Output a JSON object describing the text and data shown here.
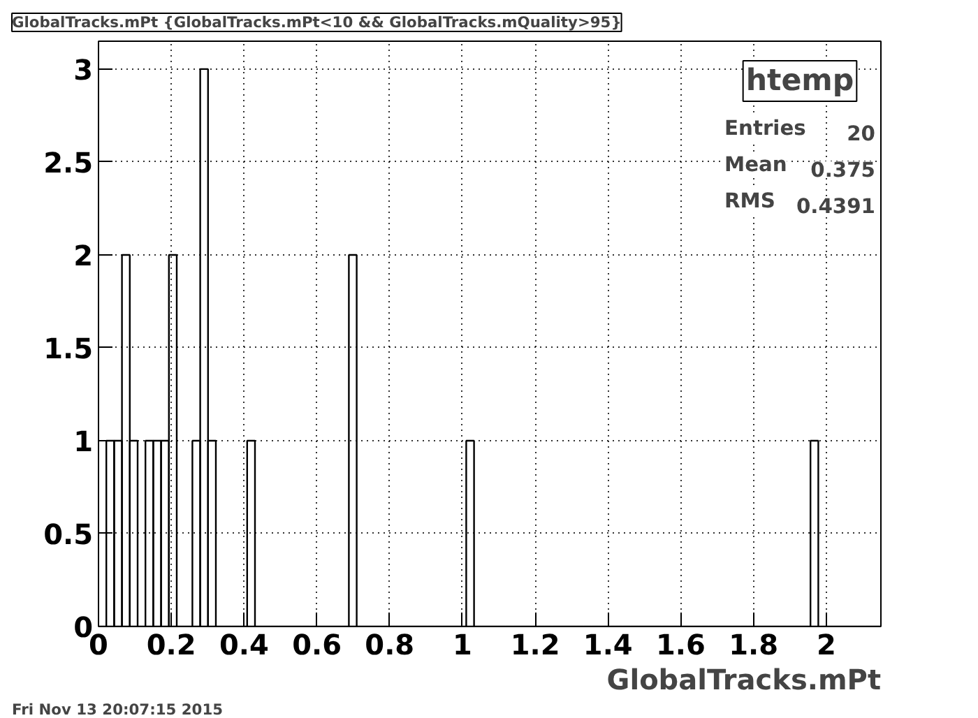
{
  "chart_data": {
    "type": "histogram",
    "title": "GlobalTracks.mPt {GlobalTracks.mPt<10 && GlobalTracks.mQuality>95}",
    "xlabel": "GlobalTracks.mPt",
    "bins": [
      0,
      0.0215,
      0.043,
      0.0645,
      0.086,
      0.1075,
      0.129,
      0.1505,
      0.172,
      0.1935,
      0.215,
      0.2365,
      0.258,
      0.2795,
      0.301,
      0.3225,
      0.344,
      0.3655,
      0.387,
      0.4085,
      0.43,
      0.4515,
      0.473,
      0.4945,
      0.516,
      0.5375,
      0.559,
      0.5805,
      0.602,
      0.6235,
      0.645,
      0.6665,
      0.688,
      0.7095,
      0.731,
      0.7525,
      0.774,
      0.7955,
      0.817,
      0.8385,
      0.86,
      0.8815,
      0.903,
      0.9245,
      0.946,
      0.9675,
      0.989,
      1.0105,
      1.032,
      1.0535,
      1.075,
      1.0965,
      1.118,
      1.1395,
      1.161,
      1.1825,
      1.204,
      1.2255,
      1.247,
      1.2685,
      1.29,
      1.3115,
      1.333,
      1.3545,
      1.376,
      1.3975,
      1.419,
      1.4405,
      1.462,
      1.4835,
      1.505,
      1.5265,
      1.548,
      1.5695,
      1.591,
      1.6125,
      1.634,
      1.6555,
      1.677,
      1.6985,
      1.72,
      1.7415,
      1.763,
      1.7845,
      1.806,
      1.8275,
      1.849,
      1.8705,
      1.892,
      1.9135,
      1.935,
      1.9565,
      1.978,
      1.9995,
      2.021,
      2.0425,
      2.064,
      2.0855,
      2.107,
      2.1285,
      2.15
    ],
    "values": [
      0,
      1,
      1,
      2,
      1,
      0,
      1,
      1,
      1,
      2,
      0,
      0,
      1,
      3,
      1,
      0,
      0,
      0,
      0,
      1,
      0,
      0,
      0,
      0,
      0,
      0,
      0,
      0,
      0,
      0,
      0,
      0,
      2,
      0,
      0,
      0,
      0,
      0,
      0,
      0,
      0,
      0,
      0,
      0,
      0,
      0,
      0,
      1,
      0,
      0,
      0,
      0,
      0,
      0,
      0,
      0,
      0,
      0,
      0,
      0,
      0,
      0,
      0,
      0,
      0,
      0,
      0,
      0,
      0,
      0,
      0,
      0,
      0,
      0,
      0,
      0,
      0,
      0,
      0,
      0,
      0,
      0,
      0,
      0,
      0,
      0,
      0,
      0,
      0,
      0,
      0,
      1,
      0,
      0,
      0,
      0,
      0,
      0,
      0,
      0
    ],
    "color": "#000000",
    "xlim": [
      0,
      2.15
    ],
    "xticks": [
      0,
      0.2,
      0.4,
      0.6,
      0.8,
      1,
      1.2,
      1.4,
      1.6,
      1.8,
      2
    ],
    "ylim": [
      0,
      3.15
    ],
    "yticks": [
      0,
      0.5,
      1,
      1.5,
      2,
      2.5,
      3
    ],
    "grid": true,
    "annotations": [
      "htemp",
      "Entries",
      "20",
      "Mean",
      "0.375",
      "RMS",
      "0.4391",
      "Fri Nov 13 20:07:15 2015"
    ]
  }
}
